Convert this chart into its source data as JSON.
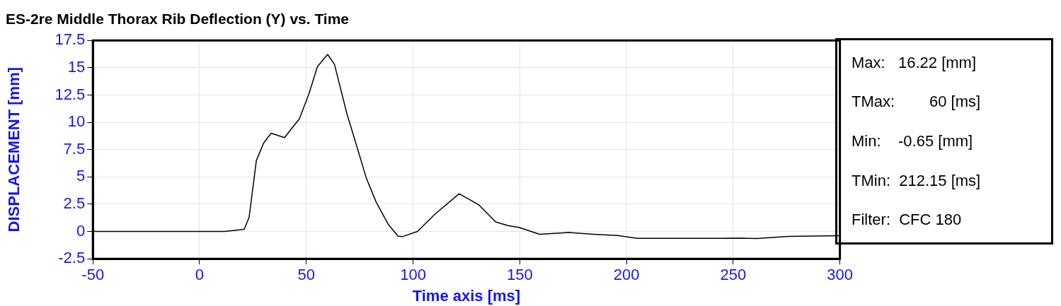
{
  "chart_data": {
    "type": "line",
    "title": "ES-2re Middle Thorax Rib Deflection (Y) vs. Time",
    "xlabel": "Time axis [ms]",
    "ylabel": "DISPLACEMENT [mm]",
    "x": [
      -50,
      0,
      11.8,
      20.9,
      23.2,
      26.6,
      30,
      33.5,
      39.8,
      43.8,
      46.7,
      51.2,
      55.2,
      60,
      63.2,
      69,
      73.5,
      78.1,
      82.7,
      88.4,
      93,
      95,
      102.1,
      110.1,
      121.6,
      130.7,
      138.7,
      144.5,
      149.6,
      159.3,
      173,
      184.5,
      195.9,
      205,
      231.4,
      253,
      261,
      276,
      300
    ],
    "series": [
      {
        "color": "#000000",
        "values": [
          0,
          0,
          0,
          0.2,
          1.3,
          6.5,
          8.1,
          9.0,
          8.6,
          9.6,
          10.3,
          12.6,
          15.1,
          16.22,
          15.3,
          10.8,
          7.9,
          4.9,
          2.7,
          0.65,
          -0.43,
          -0.47,
          0,
          1.56,
          3.46,
          2.46,
          0.88,
          0.54,
          0.38,
          -0.25,
          -0.09,
          -0.25,
          -0.36,
          -0.63,
          -0.63,
          -0.61,
          -0.65,
          -0.45,
          -0.39
        ]
      }
    ],
    "xlim": [
      -50,
      300
    ],
    "xticks": [
      -50,
      0,
      50,
      100,
      150,
      200,
      250,
      300
    ],
    "ylim": [
      -2.5,
      17.5
    ],
    "yticks": [
      -2.5,
      0,
      2.5,
      5,
      7.5,
      10,
      12.5,
      15,
      17.5
    ],
    "grid": true,
    "annotations": [
      "Max:   16.22 [mm]",
      "TMax:        60 [ms]",
      "Min:    -0.65 [mm]",
      "TMin:  212.15 [ms]",
      "Filter:  CFC 180"
    ]
  }
}
